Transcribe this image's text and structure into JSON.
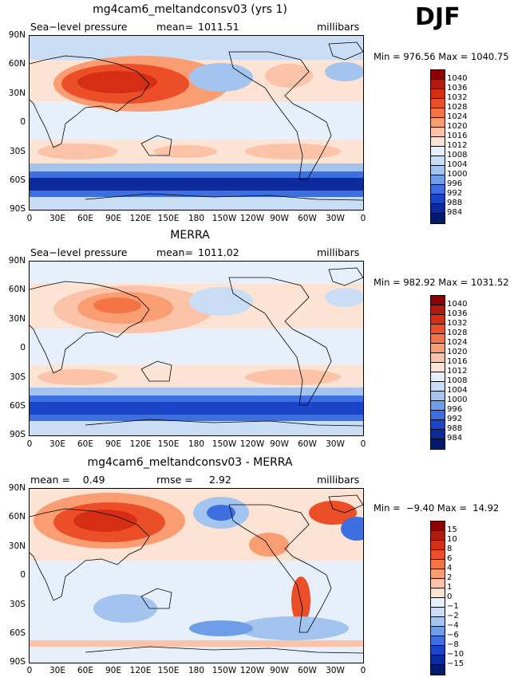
{
  "season": "DJF",
  "panels": [
    {
      "title": "mg4cam6_meltandconsv03 (yrs 1)",
      "left": "Sea−level pressure",
      "center_label": "mean=",
      "center_value": "1011.51",
      "right": "millibars",
      "min_label": "Min =",
      "min_value": "976.56",
      "max_label": "Max =",
      "max_value": "1040.75",
      "minmax": "Min = 976.56 Max = 1040.75",
      "levels": [
        "1040",
        "1036",
        "1032",
        "1028",
        "1024",
        "1020",
        "1016",
        "1012",
        "1008",
        "1004",
        "1000",
        "996",
        "992",
        "988",
        "984"
      ],
      "colors": [
        "#8b0000",
        "#b11b0f",
        "#d52e14",
        "#ec4f27",
        "#f57446",
        "#fa9d73",
        "#fcc3a8",
        "#fde3d4",
        "#e7f0fa",
        "#c9ddf5",
        "#a3c4ef",
        "#6f9ee8",
        "#3d6fe0",
        "#1a45c8",
        "#0b2a9c",
        "#001a6e"
      ]
    },
    {
      "title": "MERRA",
      "left": "Sea−level pressure",
      "center_label": "mean=",
      "center_value": "1011.02",
      "right": "millibars",
      "min_label": "Min =",
      "min_value": "982.92",
      "max_label": "Max =",
      "max_value": "1031.52",
      "minmax": "Min = 982.92 Max = 1031.52",
      "levels": [
        "1040",
        "1036",
        "1032",
        "1028",
        "1024",
        "1020",
        "1016",
        "1012",
        "1008",
        "1004",
        "1000",
        "996",
        "992",
        "988",
        "984"
      ],
      "colors": [
        "#8b0000",
        "#b11b0f",
        "#d52e14",
        "#ec4f27",
        "#f57446",
        "#fa9d73",
        "#fcc3a8",
        "#fde3d4",
        "#e7f0fa",
        "#c9ddf5",
        "#a3c4ef",
        "#6f9ee8",
        "#3d6fe0",
        "#1a45c8",
        "#0b2a9c",
        "#001a6e"
      ]
    },
    {
      "title": "mg4cam6_meltandconsv03 - MERRA",
      "left": "mean =    0.49",
      "center_label": "rmse =",
      "center_value": "2.92",
      "right": "millibars",
      "min_label": "Min =",
      "min_value": "-9.40",
      "max_label": "Max =",
      "max_value": "14.92",
      "minmax": "Min =  −9.40 Max =  14.92",
      "levels": [
        "15",
        "10",
        "8",
        "6",
        "4",
        "2",
        "1",
        "0",
        "−1",
        "−2",
        "−4",
        "−6",
        "−8",
        "−10",
        "−15"
      ],
      "colors": [
        "#8b0000",
        "#b11b0f",
        "#d52e14",
        "#ec4f27",
        "#f57446",
        "#fa9d73",
        "#fcc3a8",
        "#fde3d4",
        "#e7f0fa",
        "#c9ddf5",
        "#a3c4ef",
        "#6f9ee8",
        "#3d6fe0",
        "#1a45c8",
        "#0b2a9c",
        "#001a6e"
      ]
    }
  ],
  "lat_labels": [
    "90N",
    "60N",
    "30N",
    "0",
    "30S",
    "60S",
    "90S"
  ],
  "lon_labels": [
    "0",
    "30E",
    "60E",
    "90E",
    "120E",
    "150E",
    "180",
    "150W",
    "120W",
    "90W",
    "60W",
    "30W",
    "0"
  ]
}
